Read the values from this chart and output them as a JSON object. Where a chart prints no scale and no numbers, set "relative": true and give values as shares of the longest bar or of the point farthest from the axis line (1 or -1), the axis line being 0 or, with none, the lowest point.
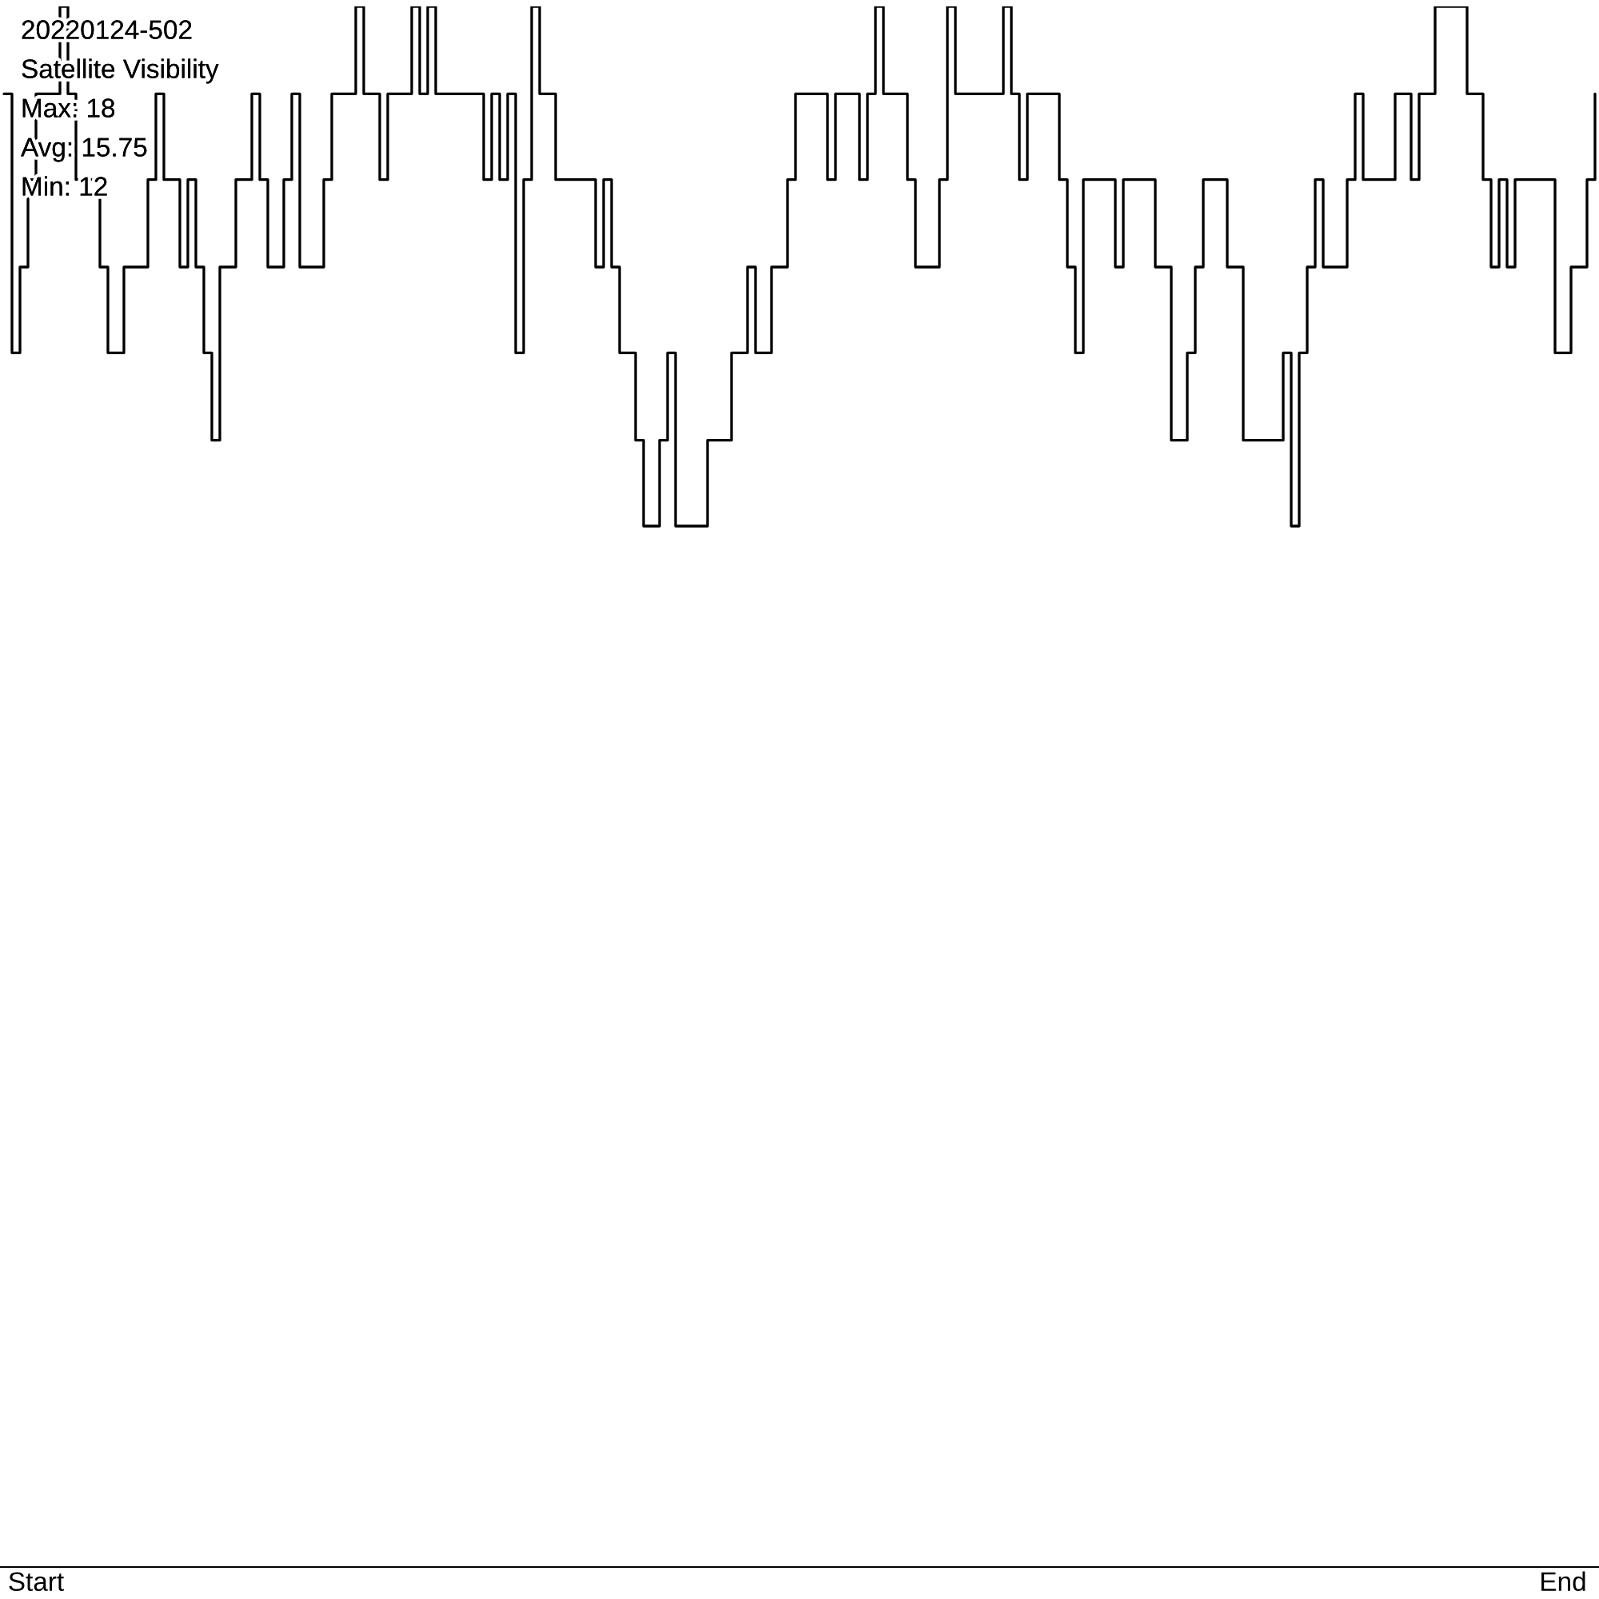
{
  "chart_data": {
    "type": "step",
    "title": "20220124-502",
    "subtitle": "Satellite Visibility",
    "relative": true,
    "annotations": [
      "Max: 18",
      "Avg: 15.75",
      "Min: 12"
    ],
    "color": "#000000",
    "categories": [
      null,
      null,
      null,
      null,
      "Start",
      null,
      null,
      null,
      null,
      null,
      null,
      null,
      null,
      null,
      null,
      null,
      null,
      null,
      null,
      null,
      null,
      null,
      null,
      null,
      null,
      null,
      null,
      null,
      null,
      null,
      null,
      null,
      null,
      null,
      null,
      null,
      null,
      null,
      null,
      null,
      null,
      null,
      null,
      null,
      null,
      null,
      null,
      null,
      null,
      null,
      null,
      null,
      null,
      null,
      null,
      null,
      null,
      null,
      null,
      null,
      null,
      null,
      null,
      null,
      null,
      null,
      null,
      null,
      null,
      null,
      null,
      null,
      null,
      null,
      null,
      null,
      null,
      null,
      null,
      null,
      null,
      null,
      null,
      null,
      null,
      null,
      null,
      null,
      null,
      null,
      null,
      null,
      null,
      null,
      null,
      null,
      null,
      null,
      null,
      null,
      null,
      null,
      null,
      null,
      null,
      null,
      null,
      null,
      null,
      null,
      null,
      null,
      null,
      null,
      null,
      null,
      null,
      null,
      null,
      null,
      null,
      null,
      null,
      null,
      null,
      null,
      null,
      null,
      null,
      null,
      null,
      null,
      null,
      null,
      null,
      null,
      null,
      null,
      null,
      null,
      null,
      null,
      null,
      null,
      null,
      null,
      null,
      null,
      null,
      null,
      null,
      null,
      null,
      null,
      null,
      null,
      null,
      null,
      null,
      null,
      null,
      null,
      null,
      null,
      null,
      null,
      null,
      null,
      null,
      null,
      null,
      null,
      null,
      null,
      null,
      null,
      null,
      null,
      null,
      null,
      null,
      null,
      null,
      null,
      null,
      null,
      null,
      null,
      null,
      null,
      null,
      null,
      null,
      null,
      null,
      "End",
      null,
      null,
      null,
      null
    ],
    "values": [
      0.944,
      0.778,
      0.833,
      0.889,
      0.944,
      0.944,
      0.944,
      1,
      0.944,
      0.889,
      0.889,
      0.889,
      0.833,
      0.778,
      0.778,
      0.833,
      0.833,
      0.833,
      0.889,
      0.944,
      0.889,
      0.889,
      0.833,
      0.889,
      0.833,
      0.778,
      0.722,
      0.833,
      0.833,
      0.889,
      0.889,
      0.944,
      0.889,
      0.833,
      0.833,
      0.889,
      0.944,
      0.833,
      0.833,
      0.833,
      0.889,
      0.944,
      0.944,
      0.944,
      1,
      0.944,
      0.944,
      0.889,
      0.944,
      0.944,
      0.944,
      1,
      0.944,
      1,
      0.944,
      0.944,
      0.944,
      0.944,
      0.944,
      0.944,
      0.889,
      0.944,
      0.889,
      0.944,
      0.778,
      0.889,
      1,
      0.944,
      0.944,
      0.889,
      0.889,
      0.889,
      0.889,
      0.889,
      0.833,
      0.889,
      0.833,
      0.778,
      0.778,
      0.722,
      0.667,
      0.667,
      0.722,
      0.778,
      0.667,
      0.667,
      0.667,
      0.667,
      0.722,
      0.722,
      0.722,
      0.778,
      0.778,
      0.833,
      0.778,
      0.778,
      0.833,
      0.833,
      0.889,
      0.944,
      0.944,
      0.944,
      0.944,
      0.889,
      0.944,
      0.944,
      0.944,
      0.889,
      0.944,
      1,
      0.944,
      0.944,
      0.944,
      0.889,
      0.833,
      0.833,
      0.833,
      0.889,
      1,
      0.944,
      0.944,
      0.944,
      0.944,
      0.944,
      0.944,
      1,
      0.944,
      0.889,
      0.944,
      0.944,
      0.944,
      0.944,
      0.889,
      0.833,
      0.778,
      0.889,
      0.889,
      0.889,
      0.889,
      0.833,
      0.889,
      0.889,
      0.889,
      0.889,
      0.833,
      0.833,
      0.722,
      0.722,
      0.778,
      0.833,
      0.889,
      0.889,
      0.889,
      0.833,
      0.833,
      0.722,
      0.722,
      0.722,
      0.722,
      0.722,
      0.778,
      0.667,
      0.778,
      0.833,
      0.889,
      0.833,
      0.833,
      0.833,
      0.889,
      0.944,
      0.889,
      0.889,
      0.889,
      0.889,
      0.944,
      0.944,
      0.889,
      0.944,
      0.944,
      1,
      1,
      1,
      1,
      0.944,
      0.944,
      0.889,
      0.833,
      0.889,
      0.833,
      0.889,
      0.889,
      0.889,
      0.889,
      0.889,
      0.778,
      0.778,
      0.833,
      0.833,
      0.889,
      0.944
    ]
  }
}
